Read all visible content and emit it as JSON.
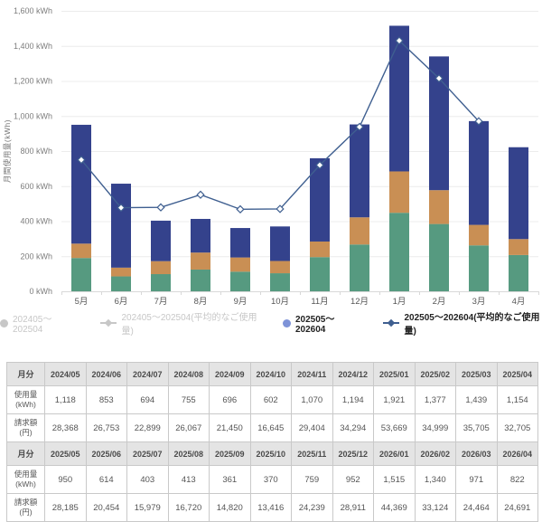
{
  "chart": {
    "y_axis_title": "月間使用量(kWh)"
  },
  "chart_data": {
    "type": "bar",
    "subtype": "stacked-bar-with-line",
    "title": "",
    "xlabel": "",
    "ylabel": "月間使用量(kWh)",
    "ylim": [
      0,
      1600
    ],
    "y_step": 200,
    "y_unit": " kWh",
    "grid": true,
    "legend_position": "bottom",
    "categories": [
      "5月",
      "6月",
      "7月",
      "8月",
      "9月",
      "10月",
      "11月",
      "12月",
      "1月",
      "2月",
      "3月",
      "4月"
    ],
    "bar_series": {
      "name": "202505～202604",
      "totals": [
        950,
        614,
        403,
        413,
        361,
        370,
        759,
        952,
        1515,
        1340,
        971,
        822
      ],
      "stacks": [
        {
          "name": "bottom",
          "color": "#569a80",
          "values": [
            190,
            85,
            98,
            124,
            112,
            103,
            195,
            267,
            448,
            384,
            262,
            207
          ]
        },
        {
          "name": "middle",
          "color": "#c98f54",
          "values": [
            82,
            50,
            74,
            97,
            81,
            70,
            89,
            155,
            236,
            193,
            117,
            91
          ]
        },
        {
          "name": "top",
          "color": "#34428c",
          "values": [
            678,
            479,
            231,
            192,
            168,
            197,
            475,
            530,
            831,
            763,
            592,
            524
          ]
        }
      ]
    },
    "line_series": {
      "name": "202505～202604(平均的なご使用量)",
      "color": "#3f5f90",
      "values": [
        750,
        477,
        479,
        551,
        468,
        470,
        720,
        938,
        1430,
        1215,
        970,
        null
      ]
    },
    "hidden_series": [
      "202405～202504",
      "202405～202504(平均的なご使用量)"
    ]
  },
  "legend": {
    "items": [
      {
        "label": "202405～202504",
        "marker": "dot",
        "color": "#c7c7c7",
        "active": false
      },
      {
        "label": "202405～202504(平均的なご使用量)",
        "marker": "line-diamond",
        "color": "#c7c7c7",
        "active": false
      },
      {
        "label": "202505～202604",
        "marker": "dot",
        "color": "#7e93d8",
        "active": true
      },
      {
        "label": "202505～202604(平均的なご使用量)",
        "marker": "line-diamond",
        "color": "#3f5f90",
        "active": true
      }
    ]
  },
  "table": {
    "row_headers": {
      "month": "月分",
      "usage": [
        "使用量",
        "(kWh)"
      ],
      "bill": [
        "請求額",
        "(円)"
      ]
    },
    "blocks": [
      {
        "months": [
          "2024/05",
          "2024/06",
          "2024/07",
          "2024/08",
          "2024/09",
          "2024/10",
          "2024/11",
          "2024/12",
          "2025/01",
          "2025/02",
          "2025/03",
          "2025/04"
        ],
        "usage": [
          "1,118",
          "853",
          "694",
          "755",
          "696",
          "602",
          "1,070",
          "1,194",
          "1,921",
          "1,377",
          "1,439",
          "1,154"
        ],
        "bill": [
          "28,368",
          "26,753",
          "22,899",
          "26,067",
          "21,450",
          "16,645",
          "29,404",
          "34,294",
          "53,669",
          "34,999",
          "35,705",
          "32,705"
        ]
      },
      {
        "months": [
          "2025/05",
          "2025/06",
          "2025/07",
          "2025/08",
          "2025/09",
          "2025/10",
          "2025/11",
          "2025/12",
          "2026/01",
          "2026/02",
          "2026/03",
          "2026/04"
        ],
        "usage": [
          "950",
          "614",
          "403",
          "413",
          "361",
          "370",
          "759",
          "952",
          "1,515",
          "1,340",
          "971",
          "822"
        ],
        "bill": [
          "28,185",
          "20,454",
          "15,979",
          "16,720",
          "14,820",
          "13,416",
          "24,239",
          "28,911",
          "44,369",
          "33,124",
          "24,464",
          "24,691"
        ]
      }
    ]
  },
  "colors": {
    "bar_bottom": "#569a80",
    "bar_middle": "#c98f54",
    "bar_top": "#34428c",
    "line": "#3f5f90",
    "gridline": "#ececec",
    "axis": "#d8d8d8",
    "tick_text": "#7d7d7d",
    "month_text": "#555555",
    "legend_inactive": "#c7c7c7",
    "legend_dot_active": "#7e93d8",
    "table_header_bg": "#e4e4e4",
    "table_border": "#c9c9c9",
    "table_text": "#555555"
  }
}
